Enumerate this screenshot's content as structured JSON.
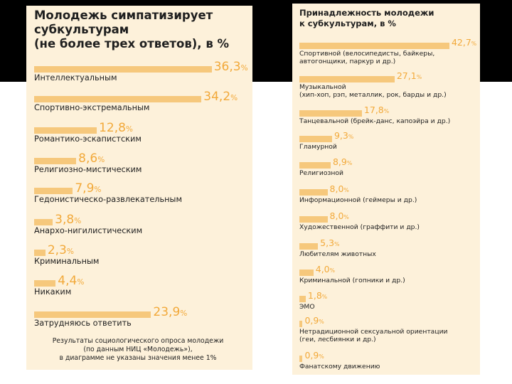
{
  "chart_data": [
    {
      "type": "bar",
      "title": "Молодежь симпатизирует\nсубкультурам\n(не более трех ответов), в %",
      "unit": "%",
      "categories": [
        "Интеллектуальным",
        "Спортивно-экстремальным",
        "Романтико-эскапистским",
        "Религиозно-мистическим",
        "Гедонистическо-развлекательным",
        "Анархо-нигилистическим",
        "Криминальным",
        "Никаким",
        "Затрудняюсь ответить"
      ],
      "values": [
        36.3,
        34.2,
        12.8,
        8.6,
        7.9,
        3.8,
        2.3,
        4.4,
        23.9
      ],
      "value_labels": [
        "36,3",
        "34,2",
        "12,8",
        "8,6",
        "7,9",
        "3,8",
        "2,3",
        "4,4",
        "23,9"
      ],
      "note": "Результаты социологического опроса молодежи\n(по данным НИЦ «Молодежь»),\nв диаграмме не указаны значения менее 1%"
    },
    {
      "type": "bar",
      "title": "Принадлежность молодежи\nк субкультурам, в %",
      "unit": "%",
      "categories": [
        "Спортивной (велосипедисты, байкеры,\nавтогонщики, паркур и др.)",
        "Музыкальной\n(хип-хоп, рэп, металлик, рок, барды и др.)",
        "Танцевальной (брейк-данс, капоэйра и др.)",
        "Гламурной",
        "Религиозной",
        "Информационной (геймеры и др.)",
        "Художественной (граффити и др.)",
        "Любителям животных",
        "Криминальной (гопники и др.)",
        "ЭМО",
        "Нетрадиционной сексуальной ориентации\n(геи, лесбиянки и др.)",
        "Фанатскому движению"
      ],
      "values": [
        42.7,
        27.1,
        17.8,
        9.3,
        8.9,
        8.0,
        8.0,
        5.3,
        4.0,
        1.8,
        0.9,
        0.9
      ],
      "value_labels": [
        "42,7",
        "27,1",
        "17,8",
        "9,3",
        "8,9",
        "8,0",
        "8,0",
        "5,3",
        "4,0",
        "1,8",
        "0,9",
        "0,9"
      ]
    }
  ]
}
